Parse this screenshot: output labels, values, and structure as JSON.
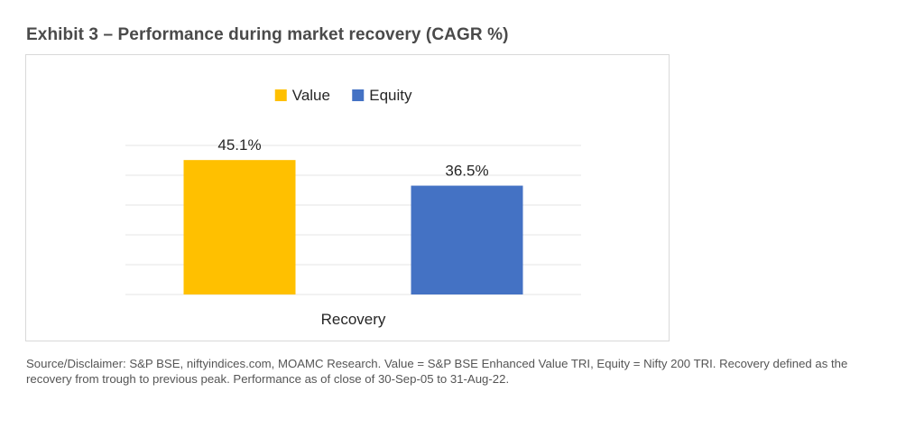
{
  "exhibit_title": "Exhibit 3 – Performance during market recovery (CAGR %)",
  "source_note": "Source/Disclaimer: S&P BSE, niftyindices.com, MOAMC Research. Value = S&P BSE Enhanced Value TRI, Equity = Nifty 200 TRI. Recovery defined as the recovery from trough to previous peak. Performance as of close of 30-Sep-05 to 31-Aug-22.",
  "chart_data": {
    "type": "bar",
    "title": "",
    "categories": [
      "Recovery"
    ],
    "series": [
      {
        "name": "Value",
        "values": [
          45.1
        ],
        "labels": [
          "45.1%"
        ],
        "color": "#FFC000"
      },
      {
        "name": "Equity",
        "values": [
          36.5
        ],
        "labels": [
          "36.5%"
        ],
        "color": "#4472C4"
      }
    ],
    "xlabel": "",
    "ylabel": "",
    "ylim": [
      0,
      50
    ],
    "grid": true,
    "legend": "top-center"
  }
}
